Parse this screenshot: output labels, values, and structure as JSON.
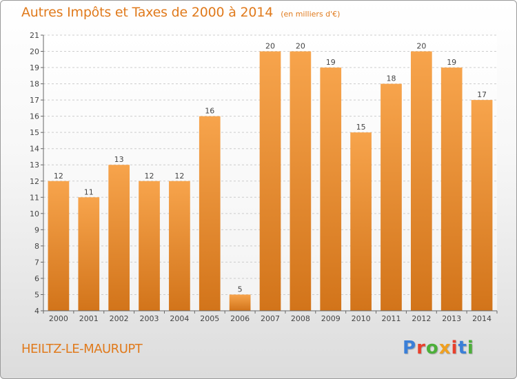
{
  "header": {
    "title": "Autres Impôts et Taxes de 2000 à 2014",
    "unit": "(en milliers d'€)"
  },
  "footer": {
    "commune": "HEILTZ-LE-MAURUPT",
    "logo": "Proxiti",
    "logo_colors": [
      "#3a7fd8",
      "#e8402c",
      "#4caf3a",
      "#f0a020",
      "#e8402c",
      "#3a7fd8",
      "#4caf3a"
    ]
  },
  "colors": {
    "bar_light": "#f7a44c",
    "bar_dark": "#d2741a",
    "accent": "#e07a1c",
    "grid": "#cccccc"
  },
  "chart_data": {
    "type": "bar",
    "categories": [
      "2000",
      "2001",
      "2002",
      "2003",
      "2004",
      "2005",
      "2006",
      "2007",
      "2008",
      "2009",
      "2010",
      "2011",
      "2012",
      "2013",
      "2014"
    ],
    "values": [
      12,
      11,
      13,
      12,
      12,
      16,
      5,
      20,
      20,
      19,
      15,
      18,
      20,
      19,
      17
    ],
    "ylim": [
      4,
      21
    ],
    "yticks": [
      4,
      5,
      6,
      7,
      8,
      9,
      10,
      11,
      12,
      13,
      14,
      15,
      16,
      17,
      18,
      19,
      20,
      21
    ],
    "grid": true,
    "grid_style": "dashed-horizontal",
    "data_labels": true
  }
}
